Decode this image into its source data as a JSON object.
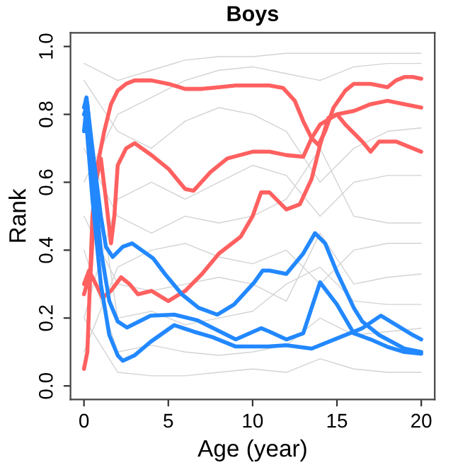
{
  "chart_data": {
    "type": "line",
    "title": "Boys",
    "xlabel": "Age (year)",
    "ylabel": "Rank",
    "xlim": [
      -0.8,
      20.8
    ],
    "ylim": [
      -0.04,
      1.04
    ],
    "xticks": [
      0,
      5,
      10,
      15,
      20
    ],
    "yticks": [
      {
        "value": 0,
        "label": "0.0"
      },
      {
        "value": 0.2,
        "label": "0.2"
      },
      {
        "value": 0.4,
        "label": "0.4"
      },
      {
        "value": 0.6,
        "label": "0.6"
      },
      {
        "value": 0.8,
        "label": "0.8"
      },
      {
        "value": 1,
        "label": "1.0"
      }
    ],
    "grid": false,
    "legend": false,
    "marker": "none",
    "line_style": "solid",
    "series": [
      {
        "color": "#d3d3d3",
        "x": [
          0,
          2,
          4,
          6,
          8,
          10,
          12,
          14,
          16,
          18,
          20
        ],
        "values": [
          0.95,
          0.9,
          0.93,
          0.96,
          0.97,
          0.97,
          0.98,
          0.98,
          0.98,
          0.98,
          0.98
        ]
      },
      {
        "color": "#d3d3d3",
        "x": [
          0,
          2,
          4,
          6,
          8,
          10,
          12,
          14,
          16,
          18,
          20
        ],
        "values": [
          0.6,
          0.8,
          0.85,
          0.9,
          0.93,
          0.94,
          0.92,
          0.9,
          0.94,
          0.95,
          0.95
        ]
      },
      {
        "color": "#d3d3d3",
        "x": [
          0,
          2,
          4,
          6,
          8,
          10,
          12,
          14,
          16,
          18,
          20
        ],
        "values": [
          0.9,
          0.75,
          0.7,
          0.78,
          0.82,
          0.8,
          0.75,
          0.6,
          0.7,
          0.75,
          0.76
        ]
      },
      {
        "color": "#d3d3d3",
        "x": [
          0,
          2,
          4,
          6,
          8,
          10,
          12,
          14,
          16,
          18,
          20
        ],
        "values": [
          0.2,
          0.55,
          0.6,
          0.55,
          0.6,
          0.65,
          0.62,
          0.5,
          0.6,
          0.62,
          0.62
        ]
      },
      {
        "color": "#d3d3d3",
        "x": [
          0,
          2,
          4,
          6,
          8,
          10,
          12,
          14,
          16,
          18,
          20
        ],
        "values": [
          0.7,
          0.5,
          0.45,
          0.5,
          0.48,
          0.5,
          0.55,
          0.7,
          0.5,
          0.48,
          0.48
        ]
      },
      {
        "color": "#d3d3d3",
        "x": [
          0,
          2,
          4,
          6,
          8,
          10,
          12,
          14,
          16,
          18,
          20
        ],
        "values": [
          0.1,
          0.35,
          0.4,
          0.42,
          0.38,
          0.36,
          0.4,
          0.3,
          0.4,
          0.42,
          0.42
        ]
      },
      {
        "color": "#d3d3d3",
        "x": [
          0,
          2,
          4,
          6,
          8,
          10,
          12,
          14,
          16,
          18,
          20
        ],
        "values": [
          0.5,
          0.3,
          0.28,
          0.3,
          0.32,
          0.3,
          0.25,
          0.45,
          0.3,
          0.32,
          0.33
        ]
      },
      {
        "color": "#d3d3d3",
        "x": [
          0,
          2,
          4,
          6,
          8,
          10,
          12,
          14,
          16,
          18,
          20
        ],
        "values": [
          0.85,
          0.2,
          0.22,
          0.18,
          0.2,
          0.22,
          0.3,
          0.35,
          0.25,
          0.24,
          0.24
        ]
      },
      {
        "color": "#d3d3d3",
        "x": [
          0,
          2,
          4,
          6,
          8,
          10,
          12,
          14,
          16,
          18,
          20
        ],
        "values": [
          0.4,
          0.1,
          0.12,
          0.1,
          0.09,
          0.1,
          0.12,
          0.2,
          0.15,
          0.16,
          0.17
        ]
      },
      {
        "color": "#d3d3d3",
        "x": [
          0,
          2,
          4,
          6,
          8,
          10,
          12,
          14,
          16,
          18,
          20
        ],
        "values": [
          0.2,
          0.04,
          0.03,
          0.03,
          0.04,
          0.05,
          0.04,
          0.08,
          0.05,
          0.04,
          0.04
        ]
      },
      {
        "color": "#ff6060",
        "x": [
          0,
          0.2,
          0.5,
          0.8,
          1.2,
          1.6,
          2,
          2.5,
          3,
          4,
          5,
          6,
          7,
          8,
          9,
          10,
          11,
          11.8,
          12.5,
          13,
          13.5,
          13.9,
          14.3,
          14.8,
          15.5,
          16,
          17,
          18,
          18.5,
          19,
          19.5,
          20
        ],
        "values": [
          0.05,
          0.1,
          0.5,
          0.65,
          0.75,
          0.83,
          0.87,
          0.89,
          0.9,
          0.9,
          0.89,
          0.875,
          0.875,
          0.88,
          0.885,
          0.885,
          0.885,
          0.878,
          0.84,
          0.78,
          0.73,
          0.71,
          0.75,
          0.82,
          0.87,
          0.89,
          0.89,
          0.88,
          0.9,
          0.91,
          0.91,
          0.905
        ]
      },
      {
        "color": "#ff6060",
        "x": [
          0,
          0.4,
          0.7,
          1,
          1.3,
          1.6,
          1.8,
          2,
          2.5,
          3,
          4,
          5,
          6,
          6.5,
          7.5,
          8.5,
          10,
          11,
          12,
          13,
          13.5,
          14,
          15,
          16,
          17,
          18,
          19,
          20
        ],
        "values": [
          0.27,
          0.34,
          0.6,
          0.67,
          0.55,
          0.42,
          0.5,
          0.65,
          0.7,
          0.715,
          0.68,
          0.64,
          0.58,
          0.575,
          0.63,
          0.67,
          0.69,
          0.69,
          0.68,
          0.675,
          0.73,
          0.77,
          0.8,
          0.81,
          0.83,
          0.84,
          0.83,
          0.82
        ]
      },
      {
        "color": "#ff6060",
        "x": [
          0,
          0.3,
          0.7,
          1.1,
          1.6,
          2.2,
          2.7,
          3.2,
          4,
          5,
          6,
          7,
          8,
          9.3,
          10,
          10.5,
          11,
          12,
          12.8,
          13.5,
          14,
          14.5,
          15,
          15.5,
          16.5,
          17,
          17.5,
          18.5,
          20
        ],
        "values": [
          0.3,
          0.34,
          0.3,
          0.26,
          0.28,
          0.32,
          0.3,
          0.27,
          0.28,
          0.25,
          0.28,
          0.33,
          0.39,
          0.44,
          0.5,
          0.57,
          0.57,
          0.52,
          0.535,
          0.61,
          0.71,
          0.79,
          0.8,
          0.77,
          0.72,
          0.69,
          0.72,
          0.72,
          0.69
        ]
      },
      {
        "color": "#2288ff",
        "x": [
          0,
          0.15,
          0.5,
          1,
          1.3,
          1.7,
          2.3,
          2.85,
          4.1,
          4.8,
          5.8,
          6.8,
          7.9,
          8.9,
          10.1,
          10.6,
          11,
          12,
          13,
          13.7,
          14.3,
          15,
          16,
          16.5,
          17.5,
          19,
          20
        ],
        "values": [
          0.82,
          0.85,
          0.7,
          0.5,
          0.41,
          0.38,
          0.41,
          0.42,
          0.376,
          0.33,
          0.27,
          0.23,
          0.21,
          0.24,
          0.305,
          0.34,
          0.34,
          0.33,
          0.39,
          0.45,
          0.42,
          0.335,
          0.23,
          0.19,
          0.15,
          0.11,
          0.1
        ]
      },
      {
        "color": "#2288ff",
        "x": [
          0,
          0.2,
          0.6,
          1,
          1.5,
          2,
          2.55,
          3.95,
          5.35,
          6.75,
          9,
          10.5,
          11,
          12,
          13,
          14,
          15,
          16,
          17,
          18,
          19,
          20
        ],
        "values": [
          0.8,
          0.83,
          0.6,
          0.4,
          0.25,
          0.19,
          0.172,
          0.207,
          0.21,
          0.193,
          0.137,
          0.17,
          0.16,
          0.137,
          0.155,
          0.305,
          0.24,
          0.155,
          0.137,
          0.115,
          0.1,
          0.095
        ]
      },
      {
        "color": "#2288ff",
        "x": [
          0,
          0.1,
          0.5,
          1,
          1.5,
          2,
          2.3,
          3,
          3.95,
          5.35,
          6.5,
          7.6,
          9,
          10.9,
          12,
          13.5,
          15,
          16.5,
          17.6,
          18.5,
          19.5,
          20
        ],
        "values": [
          0.75,
          0.8,
          0.55,
          0.3,
          0.15,
          0.09,
          0.074,
          0.09,
          0.13,
          0.179,
          0.16,
          0.144,
          0.116,
          0.116,
          0.12,
          0.11,
          0.14,
          0.17,
          0.207,
          0.18,
          0.15,
          0.137
        ]
      }
    ]
  }
}
